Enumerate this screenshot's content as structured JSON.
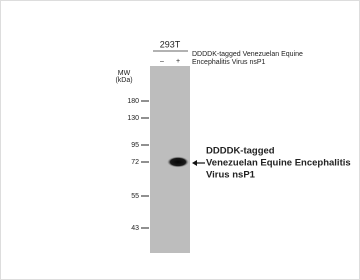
{
  "cell_line": "293T",
  "lanes": [
    "–",
    "+"
  ],
  "sample_label": [
    "DDDDK-tagged  Venezuelan Equine",
    "Encephalitis Virus nsP1"
  ],
  "mw_title": [
    "MW",
    "(kDa)"
  ],
  "markers": [
    180,
    130,
    95,
    72,
    55,
    43
  ],
  "annotation": [
    "DDDDK-tagged",
    "Venezuelan Equine Encephalitis",
    "Virus nsP1"
  ]
}
